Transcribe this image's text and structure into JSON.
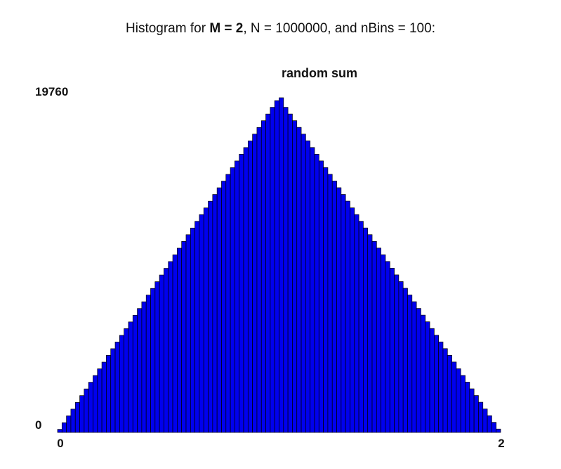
{
  "heading": {
    "prefix": "Histogram for ",
    "m_part": "M = 2",
    "suffix": ", N = 1000000, and nBins = 100:"
  },
  "chart_data": {
    "type": "bar",
    "title": "random sum",
    "xlabel": "",
    "ylabel": "",
    "bar_color": "#0000ee",
    "edge_color": "#000000",
    "n_bins": 100,
    "xlim": [
      0,
      2
    ],
    "ylim": [
      0,
      19760
    ],
    "x_tick_labels": [
      "0",
      "2"
    ],
    "y_tick_labels": [
      "0",
      "19760"
    ],
    "grid": false,
    "legend": false,
    "values": [
      181,
      576,
      982,
      1376,
      1770,
      2173,
      2568,
      2962,
      3361,
      3756,
      4151,
      4549,
      4943,
      5340,
      5732,
      6128,
      6524,
      6920,
      7318,
      7714,
      8109,
      8503,
      8900,
      9295,
      9690,
      10089,
      10485,
      10877,
      11276,
      11673,
      12068,
      12465,
      12860,
      13255,
      13650,
      14049,
      14444,
      14838,
      15235,
      15631,
      16027,
      16423,
      16818,
      17214,
      17612,
      18006,
      18403,
      18798,
      19194,
      19590,
      19760,
      19195,
      18800,
      18405,
      18010,
      17613,
      17218,
      16822,
      16425,
      16030,
      15634,
      15240,
      14843,
      14448,
      14051,
      13655,
      13260,
      12864,
      12467,
      12072,
      11676,
      11281,
      10885,
      10490,
      10094,
      9698,
      9302,
      8906,
      8511,
      8115,
      7719,
      7323,
      6927,
      6532,
      6136,
      5740,
      5344,
      4948,
      4553,
      4157,
      3761,
      3365,
      2969,
      2574,
      2178,
      1782,
      1386,
      990,
      595,
      199
    ]
  }
}
